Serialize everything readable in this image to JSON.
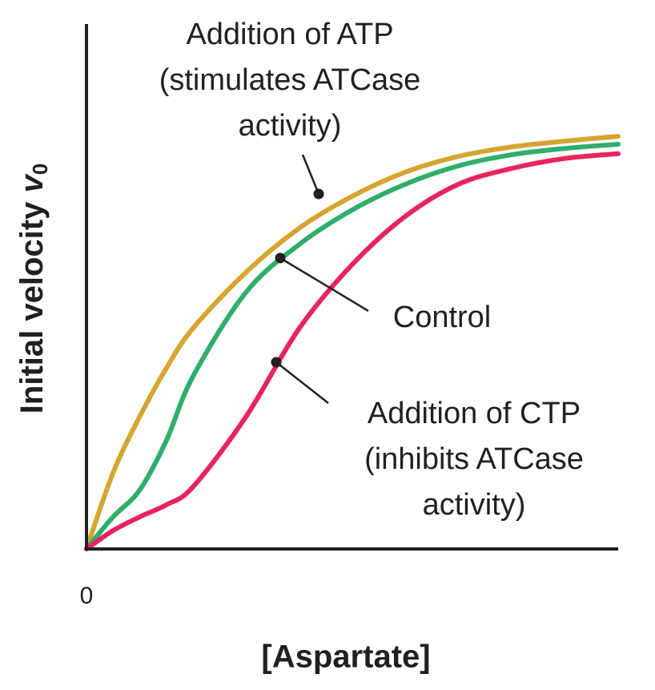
{
  "chart_data": {
    "type": "line",
    "y_label": "Initial velocity",
    "y_label_var": "v",
    "y_label_sub": "0",
    "x_label": "[Aspartate]",
    "x": [
      0,
      5,
      10,
      15,
      20,
      30,
      40,
      50,
      60,
      70,
      80,
      90,
      100
    ],
    "xlim": [
      0,
      100
    ],
    "xticks": [
      0
    ],
    "ylim": [
      0,
      100
    ],
    "yticks": [],
    "grid": false,
    "series": [
      {
        "name": "Addition of ATP",
        "color": "#d6a530",
        "values": [
          0,
          14.5,
          25.2,
          34.4,
          42.0,
          52.7,
          61.1,
          67.2,
          71.8,
          74.8,
          76.6,
          77.7,
          78.6
        ]
      },
      {
        "name": "Control",
        "color": "#2fae6b",
        "values": [
          0,
          6.1,
          11.2,
          20.6,
          32.8,
          48.9,
          58.0,
          64.6,
          69.5,
          73.0,
          75.1,
          76.3,
          77.1
        ]
      },
      {
        "name": "Addition of CTP",
        "color": "#e8245e",
        "values": [
          0,
          3.5,
          6.1,
          8.4,
          11.8,
          25.2,
          42.0,
          54.2,
          63.4,
          69.5,
          72.5,
          74.4,
          75.3
        ]
      }
    ],
    "annotations": [
      {
        "lines": [
          "Addition of ATP",
          "(stimulates ATCase",
          "activity)"
        ]
      },
      {
        "lines": [
          "Control"
        ]
      },
      {
        "lines": [
          "Addition of CTP",
          "(inhibits ATCase",
          "activity)"
        ]
      }
    ]
  }
}
